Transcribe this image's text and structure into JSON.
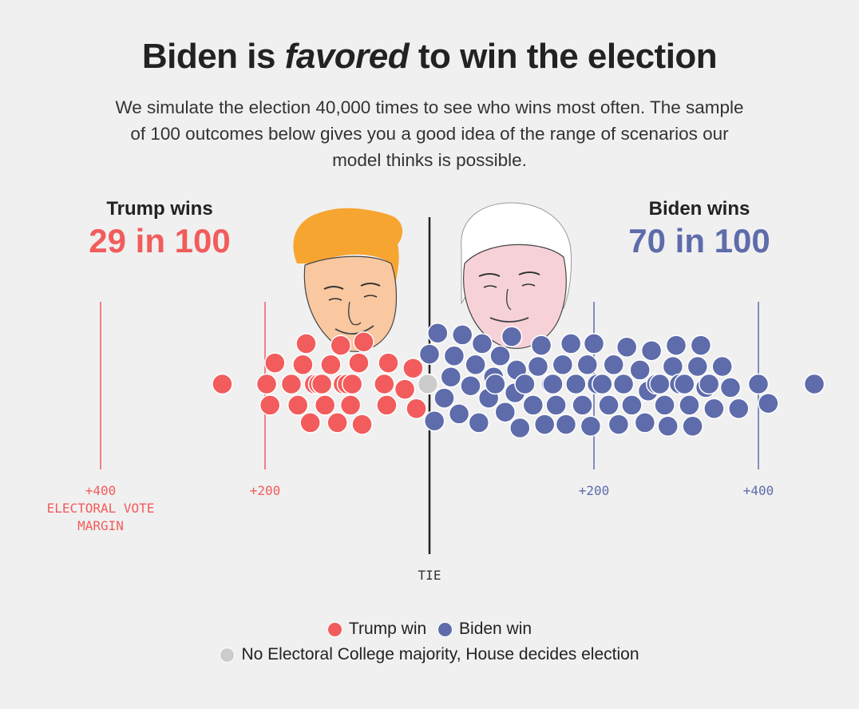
{
  "header": {
    "title_pre": "Biden is",
    "title_em": "favored",
    "title_post": "to win the election",
    "subtitle_lines": [
      "We simulate the election 40,000 times to see who wins most often. The sample",
      "of 100 outcomes below gives you a good idea of the range of scenarios our",
      "model thinks is possible."
    ]
  },
  "trump": {
    "label": "Trump wins",
    "value": "29 in 100"
  },
  "biden": {
    "label": "Biden wins",
    "value": "70 in 100"
  },
  "colors": {
    "trump": "#f25c5c",
    "biden": "#5e6cab",
    "tie": "#cccccc"
  },
  "legend": {
    "trump": "Trump win",
    "biden": "Biden win",
    "tie": "No Electoral College majority, House decides election"
  },
  "chart_data": {
    "type": "scatter",
    "subtype": "beeswarm",
    "title": "Biden is favored to win the election",
    "xlabel": "ELECTORAL VOTE MARGIN",
    "tie_label": "TIE",
    "xlim": [
      -400,
      470
    ],
    "ticks": [
      {
        "value": -400,
        "label": "+400",
        "side": "trump"
      },
      {
        "value": -200,
        "label": "+200",
        "side": "trump"
      },
      {
        "value": 200,
        "label": "+200",
        "side": "biden"
      },
      {
        "value": 400,
        "label": "+400",
        "side": "biden"
      }
    ],
    "series": [
      {
        "name": "Trump win",
        "winner": "trump",
        "count": 29,
        "values": [
          -252,
          -198,
          -194,
          -188,
          -168,
          -160,
          -154,
          -150,
          -145,
          -140,
          -135,
          -131,
          -127,
          -120,
          -112,
          -108,
          -105,
          -100,
          -96,
          -94,
          -86,
          -82,
          -80,
          -55,
          -52,
          -50,
          -30,
          -20,
          -16
        ]
      },
      {
        "name": "No Electoral College majority, House decides election",
        "winner": "tie",
        "count": 1,
        "values": [
          -2
        ]
      },
      {
        "name": "Biden win",
        "winner": "biden",
        "count": 70,
        "values": [
          0,
          6,
          10,
          18,
          26,
          30,
          36,
          40,
          50,
          56,
          60,
          64,
          72,
          78,
          80,
          86,
          92,
          100,
          104,
          106,
          110,
          116,
          126,
          132,
          136,
          140,
          148,
          150,
          154,
          162,
          166,
          172,
          178,
          186,
          192,
          196,
          200,
          204,
          210,
          218,
          224,
          230,
          236,
          240,
          246,
          256,
          262,
          266,
          270,
          276,
          280,
          286,
          290,
          296,
          300,
          304,
          310,
          316,
          320,
          326,
          330,
          336,
          340,
          346,
          356,
          366,
          376,
          400,
          412,
          468
        ]
      }
    ],
    "legend_position": "bottom"
  }
}
